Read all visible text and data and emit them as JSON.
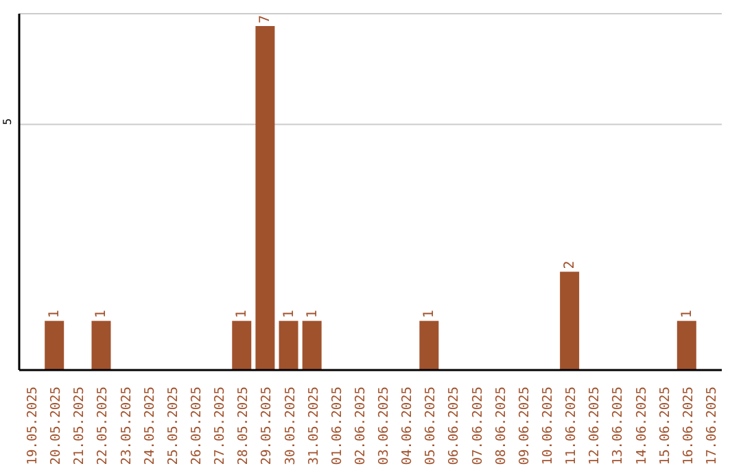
{
  "chart_data": {
    "type": "bar",
    "categories": [
      "19.05.2025",
      "20.05.2025",
      "21.05.2025",
      "22.05.2025",
      "23.05.2025",
      "24.05.2025",
      "25.05.2025",
      "26.05.2025",
      "27.05.2025",
      "28.05.2025",
      "29.05.2025",
      "30.05.2025",
      "31.05.2025",
      "01.06.2025",
      "02.06.2025",
      "03.06.2025",
      "04.06.2025",
      "05.06.2025",
      "06.06.2025",
      "07.06.2025",
      "08.06.2025",
      "09.06.2025",
      "10.06.2025",
      "11.06.2025",
      "12.06.2025",
      "13.06.2025",
      "14.06.2025",
      "15.06.2025",
      "16.06.2025",
      "17.06.2025"
    ],
    "values": [
      0,
      1,
      0,
      1,
      0,
      0,
      0,
      0,
      0,
      1,
      7,
      1,
      1,
      0,
      0,
      0,
      0,
      1,
      0,
      0,
      0,
      0,
      0,
      2,
      0,
      0,
      0,
      0,
      1,
      0
    ],
    "value_labels": [
      null,
      "1",
      null,
      "1",
      null,
      null,
      null,
      null,
      null,
      "1",
      "7",
      "1",
      "1",
      null,
      null,
      null,
      null,
      "1",
      null,
      null,
      null,
      null,
      null,
      "2",
      null,
      null,
      null,
      null,
      "1",
      null
    ],
    "color": "#a0522d",
    "ylim": [
      0,
      7.25
    ],
    "yticks": [
      5
    ],
    "grid": "y"
  }
}
